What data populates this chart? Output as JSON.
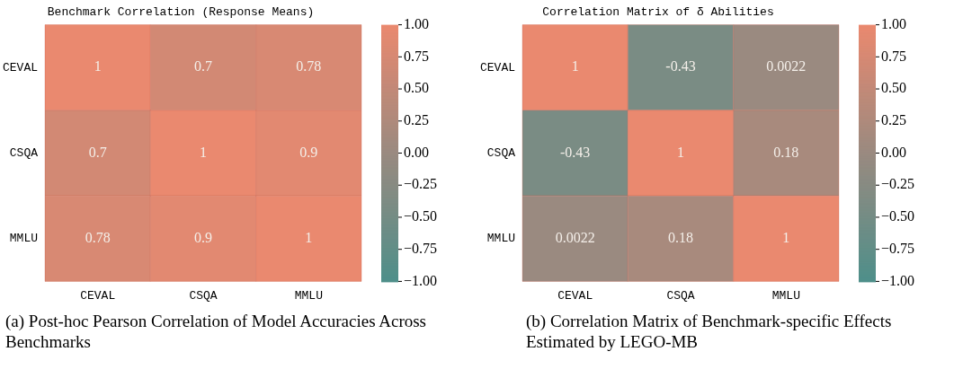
{
  "chart_data": [
    {
      "type": "heatmap",
      "title": "Benchmark Correlation (Response Means)",
      "categories": [
        "CEVAL",
        "CSQA",
        "MMLU"
      ],
      "y_categories": [
        "CEVAL",
        "CSQA",
        "MMLU"
      ],
      "cells": [
        [
          1,
          0.7,
          0.78
        ],
        [
          0.7,
          1,
          0.9
        ],
        [
          0.78,
          0.9,
          1
        ]
      ],
      "data_labels": true,
      "clim": [
        -1,
        1
      ],
      "cticks": [
        {
          "value": -1,
          "label": "−1.00"
        },
        {
          "value": -0.75,
          "label": "−0.75"
        },
        {
          "value": -0.5,
          "label": "−0.50"
        },
        {
          "value": -0.25,
          "label": "−0.25"
        },
        {
          "value": 0,
          "label": "0.00"
        },
        {
          "value": 0.25,
          "label": "0.25"
        },
        {
          "value": 0.5,
          "label": "0.50"
        },
        {
          "value": 0.75,
          "label": "0.75"
        },
        {
          "value": 1,
          "label": "1.00"
        }
      ],
      "annotations": [
        "(a) Post-hoc Pearson Correlation of Model Accuracies Across Benchmarks"
      ]
    },
    {
      "type": "heatmap",
      "title": "Correlation Matrix of δ Abilities",
      "categories": [
        "CEVAL",
        "CSQA",
        "MMLU"
      ],
      "y_categories": [
        "CEVAL",
        "CSQA",
        "MMLU"
      ],
      "cells": [
        [
          1,
          -0.43,
          0.0022
        ],
        [
          -0.43,
          1,
          0.18
        ],
        [
          0.0022,
          0.18,
          1
        ]
      ],
      "data_labels": true,
      "clim": [
        -1,
        1
      ],
      "cticks": [
        {
          "value": -1,
          "label": "−1.00"
        },
        {
          "value": -0.75,
          "label": "−0.75"
        },
        {
          "value": -0.5,
          "label": "−0.50"
        },
        {
          "value": -0.25,
          "label": "−0.25"
        },
        {
          "value": 0,
          "label": "0.00"
        },
        {
          "value": 0.25,
          "label": "0.25"
        },
        {
          "value": 0.5,
          "label": "0.50"
        },
        {
          "value": 0.75,
          "label": "0.75"
        },
        {
          "value": 1,
          "label": "1.00"
        }
      ],
      "annotations": [
        "(b) Correlation Matrix of Benchmark-specific Effects Estimated by LEGO-MB"
      ]
    }
  ]
}
